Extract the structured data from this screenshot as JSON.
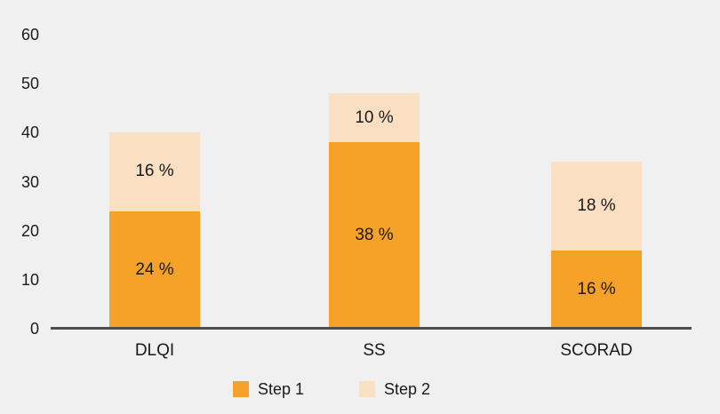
{
  "window": {
    "background_color": "#F0F0F0"
  },
  "chart_data": {
    "type": "bar",
    "stacked": true,
    "title": "",
    "xlabel": "",
    "ylabel": "",
    "categories": [
      "DLQI",
      "SS",
      "SCORAD"
    ],
    "series": [
      {
        "name": "Step 1",
        "color": "#F6A127",
        "values": [
          24,
          38,
          16
        ],
        "data_labels": [
          "24 %",
          "38 %",
          "16 %"
        ]
      },
      {
        "name": "Step 2",
        "color": "#FADFC3",
        "values": [
          16,
          10,
          18
        ],
        "data_labels": [
          "16 %",
          "10 %",
          "18 %"
        ]
      }
    ],
    "ylim": [
      0,
      60
    ],
    "ytick_labels": [
      "0",
      "10",
      "20",
      "30",
      "40",
      "50",
      "60"
    ],
    "grid": false,
    "legend_position": "bottom-center",
    "axis_line_color": "#4D4D4D",
    "text_color": "#1A1A1A",
    "plot_background": "#F0F0F0"
  }
}
